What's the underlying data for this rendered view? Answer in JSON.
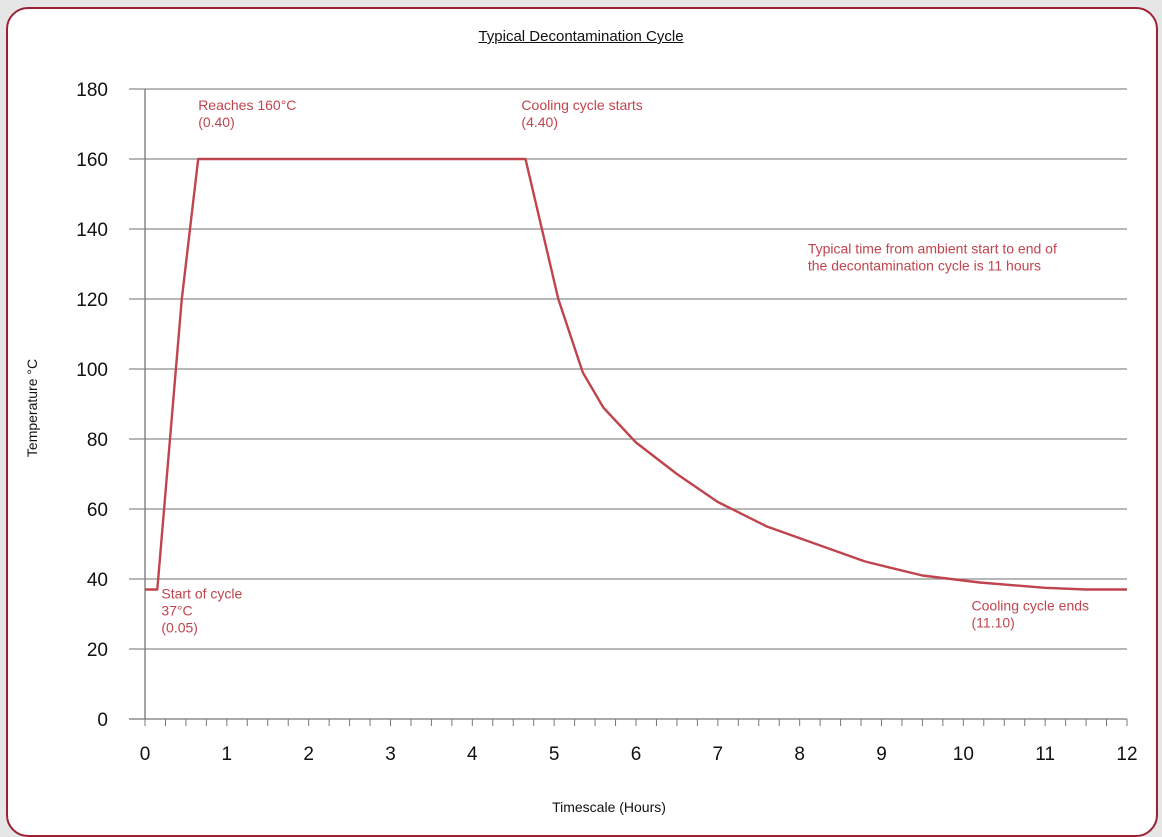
{
  "chart_data": {
    "type": "line",
    "title": "Typical Decontamination Cycle",
    "xlabel": "Timescale (Hours)",
    "ylabel": "Temperature °C",
    "xlim": [
      0,
      12
    ],
    "ylim": [
      0,
      180
    ],
    "x_ticks": [
      "0",
      "1",
      "2",
      "3",
      "4",
      "5",
      "6",
      "7",
      "8",
      "9",
      "10",
      "11",
      "12"
    ],
    "y_ticks": [
      "0",
      "20",
      "40",
      "60",
      "80",
      "100",
      "120",
      "140",
      "160",
      "180"
    ],
    "grid": "horizontal",
    "line_color": "#c0444d",
    "series": [
      {
        "x": [
          0,
          0.15,
          0.45,
          0.65,
          4.65,
          4.85,
          5.05,
          5.35,
          5.6,
          6.0,
          6.5,
          7.0,
          7.6,
          8.2,
          8.8,
          9.5,
          10.2,
          11.0,
          11.5,
          12.0
        ],
        "y": [
          37,
          37,
          120,
          160,
          160,
          140,
          120,
          99,
          89,
          79,
          70,
          62,
          55,
          50,
          45,
          41,
          39,
          37.5,
          37,
          37
        ]
      }
    ],
    "annotations": [
      {
        "lines": [
          "Reaches 160°C",
          "(0.40)"
        ],
        "x": 0.65,
        "y": 174
      },
      {
        "lines": [
          "Cooling cycle starts",
          "(4.40)"
        ],
        "x": 4.6,
        "y": 174
      },
      {
        "lines": [
          "Typical time from ambient start to end of",
          "the decontamination cycle is 11 hours"
        ],
        "x": 8.1,
        "y": 133
      },
      {
        "lines": [
          "Start of cycle",
          "37°C",
          "(0.05)"
        ],
        "x": 0.2,
        "y": 34.5
      },
      {
        "lines": [
          "Cooling cycle ends",
          "(11.10)"
        ],
        "x": 10.1,
        "y": 31
      }
    ]
  }
}
